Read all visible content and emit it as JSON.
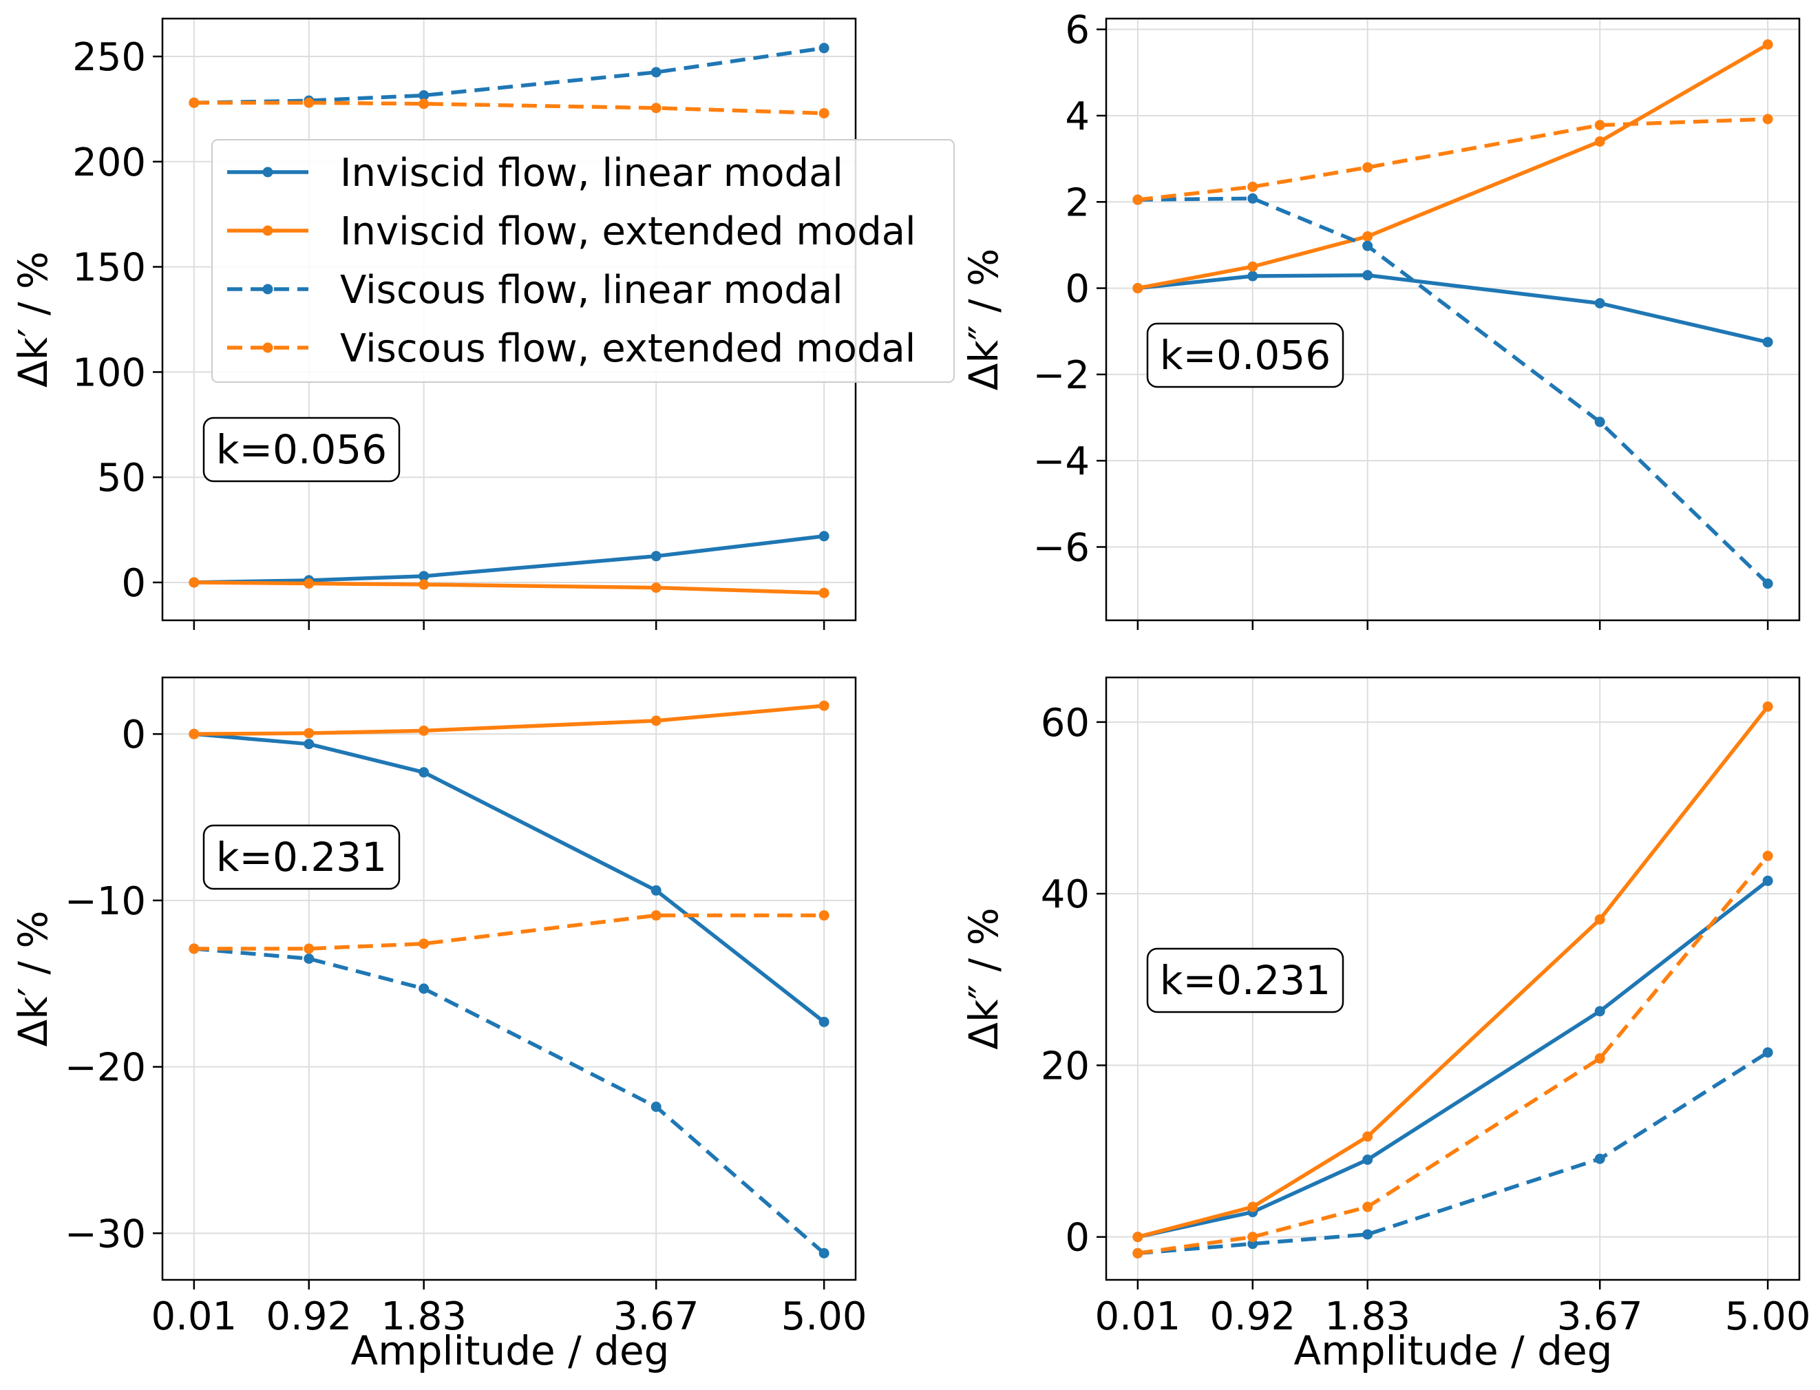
{
  "figure": {
    "xlabel": "Amplitude / deg",
    "xticks": [
      "0.01",
      "0.92",
      "1.83",
      "3.67",
      "5.00"
    ]
  },
  "colors": {
    "linear": "#1f77b4",
    "extended": "#ff7f0e",
    "grid": "#dddddd"
  },
  "legend": [
    {
      "label": "Inviscid flow, linear modal",
      "color": "#1f77b4",
      "style": "solid"
    },
    {
      "label": "Inviscid flow, extended modal",
      "color": "#ff7f0e",
      "style": "solid"
    },
    {
      "label": "Viscous flow, linear modal",
      "color": "#1f77b4",
      "style": "dashed"
    },
    {
      "label": "Viscous flow, extended modal",
      "color": "#ff7f0e",
      "style": "dashed"
    }
  ],
  "chart_data": [
    {
      "type": "line",
      "panel": "top-left",
      "annotation": "k=0.056",
      "ylabel_symbol": "Δk′",
      "ylabel_unit": " / %",
      "x": [
        0.01,
        0.92,
        1.83,
        3.67,
        5.0
      ],
      "xlim": [
        -0.24,
        5.25
      ],
      "ylim": [
        -18,
        268
      ],
      "yticks": [
        0,
        50,
        100,
        150,
        200,
        250
      ],
      "ytick_labels": [
        "0",
        "50",
        "100",
        "150",
        "200",
        "250"
      ],
      "legend_position": "upper-right",
      "series": [
        {
          "name": "Inviscid flow, linear modal",
          "values": [
            0,
            1,
            3,
            12.5,
            22
          ]
        },
        {
          "name": "Inviscid flow, extended modal",
          "values": [
            0,
            -0.5,
            -1,
            -2.5,
            -5
          ]
        },
        {
          "name": "Viscous flow, linear modal",
          "values": [
            228,
            229,
            231.5,
            242.5,
            254
          ]
        },
        {
          "name": "Viscous flow, extended modal",
          "values": [
            228,
            228,
            227.5,
            225.5,
            223
          ]
        }
      ]
    },
    {
      "type": "line",
      "panel": "top-right",
      "annotation": "k=0.056",
      "ylabel_symbol": "Δk″",
      "ylabel_unit": " / %",
      "x": [
        0.01,
        0.92,
        1.83,
        3.67,
        5.0
      ],
      "xlim": [
        -0.24,
        5.25
      ],
      "ylim": [
        -7.7,
        6.25
      ],
      "yticks": [
        -6,
        -4,
        -2,
        0,
        2,
        4,
        6
      ],
      "ytick_labels": [
        "−6",
        "−4",
        "−2",
        "0",
        "2",
        "4",
        "6"
      ],
      "series": [
        {
          "name": "Inviscid flow, linear modal",
          "values": [
            0,
            0.28,
            0.3,
            -0.35,
            -1.25
          ]
        },
        {
          "name": "Inviscid flow, extended modal",
          "values": [
            0,
            0.5,
            1.2,
            3.4,
            5.65
          ]
        },
        {
          "name": "Viscous flow, linear modal",
          "values": [
            2.05,
            2.08,
            0.98,
            -3.1,
            -6.85
          ]
        },
        {
          "name": "Viscous flow, extended modal",
          "values": [
            2.05,
            2.35,
            2.8,
            3.78,
            3.92
          ]
        }
      ]
    },
    {
      "type": "line",
      "panel": "bottom-left",
      "annotation": "k=0.231",
      "ylabel_symbol": "Δk′",
      "ylabel_unit": " / %",
      "x": [
        0.01,
        0.92,
        1.83,
        3.67,
        5.0
      ],
      "xlim": [
        -0.24,
        5.25
      ],
      "ylim": [
        -32.8,
        3.4
      ],
      "yticks": [
        -30,
        -20,
        -10,
        0
      ],
      "ytick_labels": [
        "−30",
        "−20",
        "−10",
        "0"
      ],
      "series": [
        {
          "name": "Inviscid flow, linear modal",
          "values": [
            0,
            -0.6,
            -2.3,
            -9.4,
            -17.3
          ]
        },
        {
          "name": "Inviscid flow, extended modal",
          "values": [
            0,
            0.05,
            0.2,
            0.8,
            1.7
          ]
        },
        {
          "name": "Viscous flow, linear modal",
          "values": [
            -12.9,
            -13.5,
            -15.3,
            -22.4,
            -31.2
          ]
        },
        {
          "name": "Viscous flow, extended modal",
          "values": [
            -12.9,
            -12.9,
            -12.6,
            -10.9,
            -10.9
          ]
        }
      ]
    },
    {
      "type": "line",
      "panel": "bottom-right",
      "annotation": "k=0.231",
      "ylabel_symbol": "Δk″",
      "ylabel_unit": " / %",
      "x": [
        0.01,
        0.92,
        1.83,
        3.67,
        5.0
      ],
      "xlim": [
        -0.24,
        5.25
      ],
      "ylim": [
        -5,
        65.2
      ],
      "yticks": [
        0,
        20,
        40,
        60
      ],
      "ytick_labels": [
        "0",
        "20",
        "40",
        "60"
      ],
      "series": [
        {
          "name": "Inviscid flow, linear modal",
          "values": [
            0,
            2.9,
            9,
            26.3,
            41.5
          ]
        },
        {
          "name": "Inviscid flow, extended modal",
          "values": [
            0,
            3.5,
            11.7,
            37,
            61.8
          ]
        },
        {
          "name": "Viscous flow, linear modal",
          "values": [
            -1.9,
            -0.8,
            0.3,
            9.1,
            21.5
          ]
        },
        {
          "name": "Viscous flow, extended modal",
          "values": [
            -1.9,
            0,
            3.5,
            20.8,
            44.4
          ]
        }
      ]
    }
  ]
}
